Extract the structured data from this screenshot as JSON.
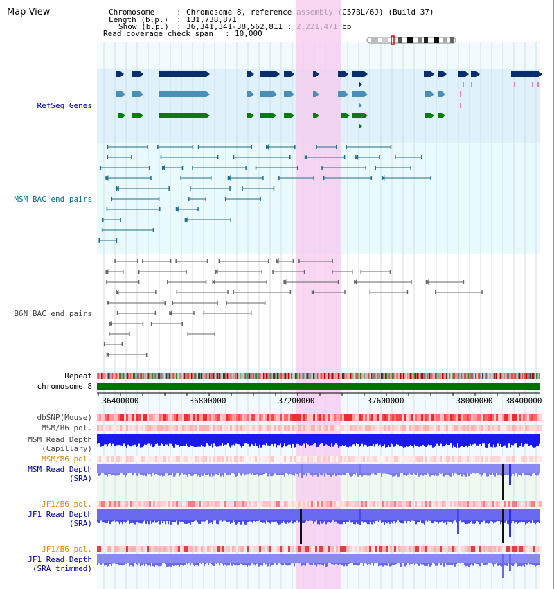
{
  "header": {
    "title": "Map View",
    "chromosome_key": "Chromosome",
    "chromosome_val": "Chromosome 8, reference assembly (C57BL/6J) (Build 37)",
    "length_key": "Length (b.p.)",
    "length_val": "131,738,871",
    "show_key": "Show (b.p.)",
    "show_val": "36,341,341-38,562,811 : 2,221,471 bp",
    "coverage_key": "Read coverage check span",
    "coverage_val": "10,000",
    "separator": ":"
  },
  "tracks": {
    "refseq": "RefSeq Genes",
    "msm_bac": "MSM BAC end pairs",
    "b6n_bac": "B6N BAC end pairs",
    "repeat": "Repeat",
    "chromosome": "chromosome 8",
    "dbsnp": "dbSNP(Mouse)",
    "msm_b6_pol_1": "MSM/B6 pol.",
    "msm_depth_cap_1": "MSM Read Depth",
    "msm_depth_cap_2": "(Capillary)",
    "msm_b6_pol_2": "MSM/B6 pol.",
    "msm_depth_sra_1": "MSM Read Depth",
    "msm_depth_sra_2": "(SRA)",
    "jf1_b6_pol_1": "JF1/B6 pol.",
    "jf1_depth_sra_1": "JF1 Read Depth",
    "jf1_depth_sra_2": "(SRA)",
    "jf1_b6_pol_2": "JF1/B6 pol.",
    "jf1_depth_trim_1": "JF1 Read Depth",
    "jf1_depth_trim_2": "(SRA trimmed)"
  },
  "axis": {
    "ticks": [
      "36400000",
      "36800000",
      "37200000",
      "37600000",
      "38000000",
      "38400000"
    ]
  },
  "colors": {
    "refseq_bg": "#dff1fb",
    "refseq_dark": "#0a2d6b",
    "refseq_mid": "#4a8fb8",
    "refseq_green": "#0a7a0a",
    "msm_bac": "#1e6e8c",
    "b6n_bac": "#666666",
    "highlight": "#f6d4ef",
    "label_blue": "#0000aa",
    "label_teal": "#0a6e8e",
    "label_orange": "#e08a00",
    "depth_blue": "#1a1aee",
    "depth_light": "#8080f0",
    "chromosome_green": "#007000"
  }
}
